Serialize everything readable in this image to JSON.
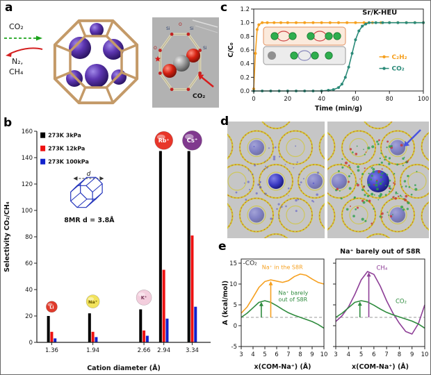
{
  "panel_labels": {
    "a": "a",
    "b": "b",
    "c": "c",
    "d": "d",
    "e": "e"
  },
  "panel_a": {
    "co2_label": "CO₂",
    "n2_label": "N₂,",
    "ch4_label": "CH₄",
    "co2_out_label": "CO₂",
    "si_label": "Si",
    "o_label": "O"
  },
  "colors": {
    "accent_orange": "#f6a01f",
    "teal": "#2a8a78",
    "green": "#2e8b3d",
    "purple": "#8e3f97",
    "bar_black": "#000000",
    "bar_red": "#ee1111",
    "bar_blue": "#1122cc",
    "framework_yellow": "#d2c62e",
    "sphere_blue": "#3838c0",
    "cation_purple": "#5c35b0",
    "cage_beige": "#c49a68"
  },
  "chart_data": [
    {
      "id": "b",
      "type": "bar",
      "xlabel": "Cation diameter (Å)",
      "ylabel": "Selectivity CO₂/CH₄",
      "xlim": [
        1.15,
        3.6
      ],
      "ylim": [
        0,
        160
      ],
      "categories": [
        "1.36",
        "1.94",
        "2.66",
        "2.94",
        "3.34"
      ],
      "yticks": [
        "0",
        "20",
        "40",
        "60",
        "80",
        "100",
        "120",
        "140",
        "160"
      ],
      "series": [
        {
          "name": "273K 3kPa",
          "color": "#000000",
          "values": [
            20,
            22,
            25,
            145,
            145
          ]
        },
        {
          "name": "273K 12kPa",
          "color": "#ee1111",
          "values": [
            8,
            8,
            9,
            55,
            81
          ]
        },
        {
          "name": "273K 100kPa",
          "color": "#1122cc",
          "values": [
            3,
            4,
            5,
            18,
            27
          ]
        }
      ],
      "inset": {
        "label": "8MR d = 3.8Å",
        "d_label": "d",
        "color": "#2233bb"
      },
      "annotations": [
        {
          "type": "legend-sq",
          "x": 1.2,
          "y": 157,
          "text": "273K 3kPa",
          "color": "#000000"
        },
        {
          "type": "legend-sq",
          "x": 1.2,
          "y": 147,
          "text": "273K 12kPa",
          "color": "#ee1111"
        },
        {
          "type": "legend-sq",
          "x": 1.2,
          "y": 137,
          "text": "273K 100kPa",
          "color": "#1122cc"
        },
        {
          "type": "ball",
          "x": 1.36,
          "y": 27,
          "r": 8,
          "color": "#e03a2b",
          "tcolor": "#ffffff",
          "text": "Li"
        },
        {
          "type": "ball",
          "x": 1.94,
          "y": 31,
          "r": 9.5,
          "color": "#f2e35c",
          "tcolor": "#6a5a00",
          "text": "Na⁺"
        },
        {
          "type": "ball",
          "x": 2.66,
          "y": 34,
          "r": 11,
          "color": "#f3cedd",
          "tcolor": "#7a3a5a",
          "text": "K⁺"
        },
        {
          "type": "ball",
          "x": 2.94,
          "y": 153,
          "r": 13,
          "color": "#e8362a",
          "tcolor": "#ffffff",
          "text": "Rb⁺"
        },
        {
          "type": "ball",
          "x": 3.34,
          "y": 153,
          "r": 14,
          "color": "#80398e",
          "tcolor": "#ffffff",
          "text": "Cs⁺"
        }
      ]
    },
    {
      "id": "c",
      "type": "line",
      "xlabel": "Time (min/g)",
      "ylabel": "C/C₀",
      "xlim": [
        0,
        100
      ],
      "ylim": [
        0,
        1.2
      ],
      "xticks": [
        "0",
        "20",
        "40",
        "60",
        "80",
        "100"
      ],
      "yticks": [
        "0.0",
        "0.2",
        "0.4",
        "0.6",
        "0.8",
        "1.0",
        "1.2"
      ],
      "series": [
        {
          "name": "C₂H₂",
          "color": "#f6a01f",
          "marker": true,
          "x": [
            0,
            1,
            2,
            3,
            5,
            8,
            12,
            16,
            20,
            25,
            30,
            35,
            40,
            45,
            50,
            55,
            60,
            65,
            70,
            75,
            80,
            85,
            90,
            95,
            100
          ],
          "y": [
            0.03,
            0.55,
            0.9,
            0.97,
            1.0,
            1.0,
            1.0,
            1.0,
            1.0,
            1.0,
            1.0,
            1.0,
            1.0,
            1.0,
            1.0,
            1.0,
            1.0,
            1.0,
            1.0,
            1.0,
            1.0,
            1.0,
            1.0,
            1.0,
            1.0
          ]
        },
        {
          "name": "CO₂",
          "color": "#2a8a78",
          "marker": true,
          "x": [
            0,
            5,
            10,
            15,
            20,
            25,
            30,
            35,
            40,
            44,
            47,
            50,
            52,
            54,
            56,
            58,
            60,
            62,
            64,
            66,
            68,
            72,
            76,
            80,
            85,
            90,
            95,
            100
          ],
          "y": [
            0,
            0,
            0,
            0,
            0,
            0,
            0,
            0,
            0,
            0.01,
            0.02,
            0.05,
            0.1,
            0.2,
            0.35,
            0.55,
            0.75,
            0.88,
            0.95,
            0.98,
            1.0,
            1.0,
            1.0,
            1.0,
            1.0,
            1.0,
            1.0,
            1.0
          ]
        }
      ],
      "annotations": [
        {
          "type": "text",
          "x": 64,
          "y": 1.12,
          "text": "Sr/K-HEU",
          "color": "#111111",
          "size": 10,
          "bold": true
        },
        {
          "type": "legend",
          "x": 74,
          "y": 0.5,
          "text": "C₂H₂",
          "color": "#f6a01f"
        },
        {
          "type": "legend",
          "x": 74,
          "y": 0.33,
          "text": "CO₂",
          "color": "#2a8a78"
        }
      ]
    },
    {
      "id": "e_left",
      "type": "line",
      "xlabel": "x(COM-Na⁺) (Å)",
      "ylabel": "A (kcal/mol)",
      "xlim": [
        3,
        10
      ],
      "ylim": [
        -5,
        16
      ],
      "xticks": [
        "3",
        "4",
        "5",
        "6",
        "7",
        "8",
        "9",
        "10"
      ],
      "yticks": [
        "-5",
        "0",
        "5",
        "10",
        "15"
      ],
      "baseline": 2,
      "series": [
        {
          "name": "Na⁺ in the S8R",
          "color": "#f6a01f",
          "x": [
            3,
            3.5,
            4,
            4.5,
            5,
            5.5,
            6,
            6.5,
            7,
            7.5,
            8,
            8.5,
            9,
            9.5,
            10
          ],
          "y": [
            3,
            4.5,
            6.8,
            9.2,
            10.6,
            11,
            10.7,
            10.4,
            10.8,
            11.8,
            12.4,
            12.1,
            11.2,
            10.4,
            10
          ]
        },
        {
          "name": "Na⁺ barely out of S8R",
          "color": "#2e8b3d",
          "x": [
            3,
            3.5,
            4,
            4.5,
            5,
            5.5,
            6,
            6.5,
            7,
            7.5,
            8,
            8.5,
            9,
            9.5,
            10
          ],
          "y": [
            2,
            3,
            4.3,
            5.6,
            6,
            5.6,
            4.8,
            3.9,
            3.1,
            2.5,
            2,
            1.5,
            1,
            0.3,
            -0.6
          ]
        }
      ],
      "annotations": [
        {
          "type": "text",
          "x": 3.15,
          "y": 14.6,
          "text": "-CO₂",
          "color": "#222222",
          "size": 9
        },
        {
          "type": "text",
          "x": 4.75,
          "y": 13.6,
          "text": "Na⁺ in the S8R",
          "color": "#f6a01f",
          "size": 8
        },
        {
          "type": "text",
          "x": 6.15,
          "y": 7.4,
          "text": "Na⁺ barely\nout of S8R",
          "color": "#2e8b3d",
          "size": 8
        },
        {
          "type": "arrow",
          "x": 5.5,
          "y0": 2,
          "y1": 10.7,
          "color": "#f6a01f"
        },
        {
          "type": "arrow",
          "x": 4.7,
          "y0": 2,
          "y1": 5.7,
          "color": "#2e8b3d"
        }
      ]
    },
    {
      "id": "e_right",
      "type": "line",
      "title": "Na⁺ barely out of S8R",
      "xlabel": "x(COM-Na⁺) (Å)",
      "xlim": [
        3,
        10
      ],
      "ylim": [
        -5,
        16
      ],
      "xticks": [
        "3",
        "4",
        "5",
        "6",
        "7",
        "8",
        "9",
        "10"
      ],
      "yticks": [
        "-5",
        "0",
        "5",
        "10",
        "15"
      ],
      "baseline": 2,
      "series": [
        {
          "name": "CH₄",
          "color": "#8e3f97",
          "x": [
            3,
            3.5,
            4,
            4.5,
            5,
            5.5,
            6,
            6.5,
            7,
            7.5,
            8,
            8.5,
            9,
            9.5,
            10
          ],
          "y": [
            1,
            2.4,
            4.5,
            7.5,
            11,
            13,
            12.3,
            9.5,
            6,
            3,
            0.6,
            -1.4,
            -2,
            0.5,
            5
          ]
        },
        {
          "name": "CO₂",
          "color": "#2e8b3d",
          "x": [
            3,
            3.5,
            4,
            4.5,
            5,
            5.5,
            6,
            6.5,
            7,
            7.5,
            8,
            8.5,
            9,
            9.5,
            10
          ],
          "y": [
            2,
            3,
            4.3,
            5.6,
            6,
            5.7,
            4.9,
            4,
            3.2,
            2.6,
            2.1,
            1.6,
            1.1,
            0.4,
            -0.6
          ]
        }
      ],
      "annotations": [
        {
          "type": "text",
          "x": 6.2,
          "y": 13.4,
          "text": "CH₄",
          "color": "#8e3f97",
          "size": 8.5
        },
        {
          "type": "text",
          "x": 7.7,
          "y": 5.4,
          "text": "CO₂",
          "color": "#2e8b3d",
          "size": 8.5
        },
        {
          "type": "arrow",
          "x": 5.6,
          "y0": 2,
          "y1": 12.8,
          "color": "#8e3f97"
        },
        {
          "type": "arrow",
          "x": 4.9,
          "y0": 2,
          "y1": 5.8,
          "color": "#2e8b3d"
        }
      ]
    }
  ]
}
